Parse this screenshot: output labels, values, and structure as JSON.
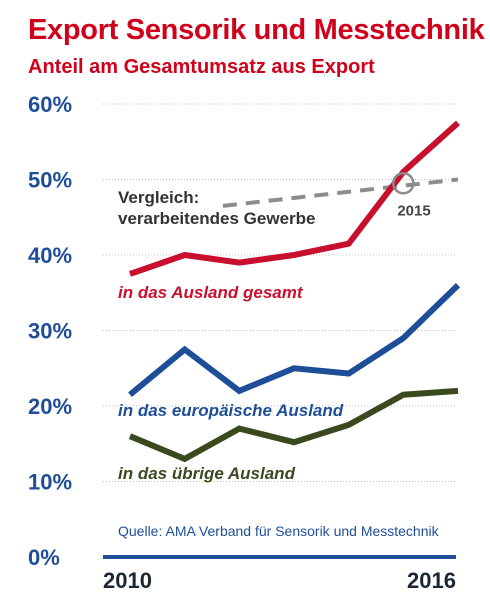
{
  "title": "Export Sensorik und Messtechnik",
  "subtitle": "Anteil am Gesamtumsatz aus Export",
  "source": "Quelle: AMA Verband für Sensorik und Messtechnik",
  "colors": {
    "red": "#c8102e",
    "blue": "#1f4e99",
    "green": "#3a4a1e",
    "gray": "#8c8c8c"
  },
  "chart_data": {
    "type": "line",
    "ylim": [
      0,
      60
    ],
    "yticks": [
      0,
      10,
      20,
      30,
      40,
      50,
      60
    ],
    "ytick_labels": [
      "0%",
      "10%",
      "20%",
      "30%",
      "40%",
      "50%",
      "60%"
    ],
    "xlim": [
      2010,
      2016
    ],
    "x_labels": [
      "2010",
      "2016"
    ],
    "grid": true,
    "series": [
      {
        "name": "in das Ausland gesamt",
        "color": "#c8102e",
        "x": [
          2010,
          2011,
          2012,
          2013,
          2014,
          2015,
          2016
        ],
        "values": [
          37.5,
          40.0,
          39.0,
          40.0,
          41.5,
          51.0,
          57.5
        ]
      },
      {
        "name": "in das europäische Ausland",
        "color": "#1f4e99",
        "x": [
          2010,
          2011,
          2012,
          2013,
          2014,
          2015,
          2016
        ],
        "values": [
          21.5,
          27.5,
          22.0,
          25.0,
          24.3,
          29.0,
          36.0
        ]
      },
      {
        "name": "in das übrige Ausland",
        "color": "#3a4a1e",
        "x": [
          2010,
          2011,
          2012,
          2013,
          2014,
          2015,
          2016
        ],
        "values": [
          16.0,
          13.0,
          17.0,
          15.2,
          17.5,
          21.5,
          22.0
        ]
      },
      {
        "name": "Vergleich: verarbeitendes Gewerbe",
        "name_lines": [
          "Vergleich:",
          "verarbeitendes Gewerbe"
        ],
        "color": "#8c8c8c",
        "dashed": true,
        "x": [
          2011.7,
          2016
        ],
        "values": [
          46.5,
          50.0
        ]
      }
    ],
    "annotations": [
      {
        "text": "2015",
        "x": 2015,
        "y": 49.5
      }
    ]
  }
}
